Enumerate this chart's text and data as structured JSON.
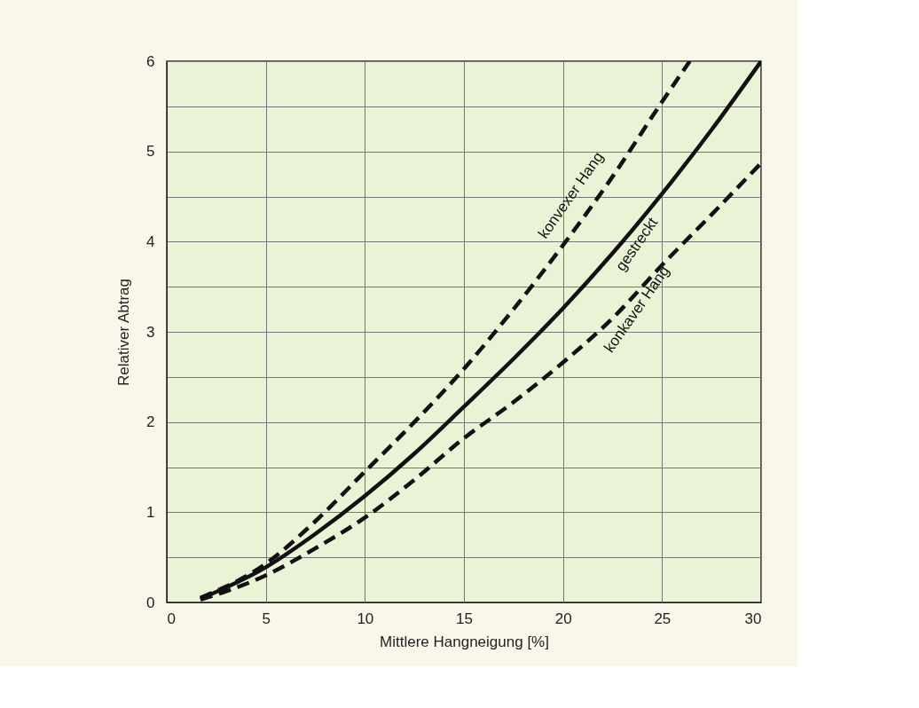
{
  "chart_data": {
    "type": "line",
    "xlabel": "Mittlere Hangneigung [%]",
    "ylabel": "Relativer Abtrag",
    "xlim": [
      0,
      30
    ],
    "xticks": [
      0,
      5,
      10,
      15,
      20,
      25,
      30
    ],
    "ylim": [
      0,
      6
    ],
    "yticks": [
      0,
      {
        "value": 0.5,
        "label": null
      },
      1,
      {
        "value": 1.5,
        "label": null
      },
      2,
      {
        "value": 2.5,
        "label": null
      },
      3,
      {
        "value": 3.5,
        "label": null
      },
      4,
      {
        "value": 4.5,
        "label": null
      },
      5,
      {
        "value": 5.5,
        "label": null
      },
      6
    ],
    "grid": true,
    "series": [
      {
        "name": "konvexer Hang",
        "color": "#111111",
        "line_style": "dashed",
        "x": [
          1.7,
          5,
          7.5,
          10,
          12.5,
          15,
          17.5,
          20,
          22.5,
          25,
          26.4
        ],
        "values": [
          0.05,
          0.43,
          0.9,
          1.45,
          2.0,
          2.59,
          3.25,
          3.96,
          4.72,
          5.55,
          6.0
        ]
      },
      {
        "name": "gestreckt",
        "color": "#111111",
        "line_style": "solid",
        "x": [
          1.7,
          5,
          7.5,
          10,
          12.5,
          15,
          17.5,
          20,
          22.5,
          25,
          27.5,
          30
        ],
        "values": [
          0.04,
          0.39,
          0.76,
          1.18,
          1.65,
          2.17,
          2.7,
          3.26,
          3.87,
          4.53,
          5.24,
          6.0
        ]
      },
      {
        "name": "konkaver Hang",
        "color": "#111111",
        "line_style": "dashed",
        "x": [
          1.7,
          5,
          7.5,
          10,
          12.5,
          15,
          17.5,
          20,
          22.5,
          25,
          27.5,
          30
        ],
        "values": [
          0.03,
          0.3,
          0.6,
          0.94,
          1.36,
          1.82,
          2.22,
          2.66,
          3.15,
          3.74,
          4.3,
          4.87
        ]
      }
    ]
  }
}
